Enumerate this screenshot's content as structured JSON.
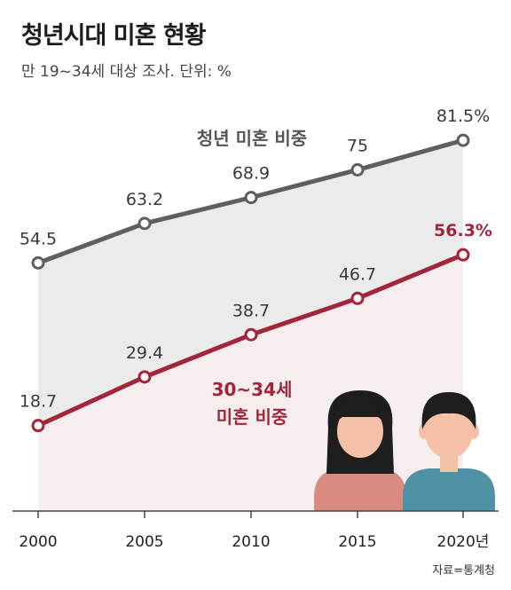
{
  "title": "청년시대 미혼 현황",
  "subtitle": "만 19~34세 대상 조사. 단위: %",
  "source": "자료=통계청",
  "colors": {
    "gray_line": "#5f5f5f",
    "red_line": "#a4253a",
    "gray_fill": "#ebebeb",
    "red_fill": "#f6eeee",
    "baseline": "#444444",
    "person_female_shirt": "#d98b80",
    "person_male_shirt": "#4e92a3",
    "skin": "#f5c0a8",
    "hair": "#1e1e1e"
  },
  "chart_data": {
    "type": "line",
    "x": [
      "2000",
      "2005",
      "2010",
      "2015",
      "2020년"
    ],
    "series": [
      {
        "name": "청년 미혼 비중",
        "values": [
          54.5,
          63.2,
          68.9,
          75,
          81.5
        ],
        "labels": [
          "54.5",
          "63.2",
          "68.9",
          "75",
          "81.5%"
        ],
        "color": "#5f5f5f"
      },
      {
        "name": "30~34세 미혼 비중",
        "name_lines": [
          "30~34세",
          "미혼 비중"
        ],
        "values": [
          18.7,
          29.4,
          38.7,
          46.7,
          56.3
        ],
        "labels": [
          "18.7",
          "29.4",
          "38.7",
          "46.7",
          "56.3%"
        ],
        "color": "#a4253a"
      }
    ],
    "ylim": [
      0,
      100
    ],
    "grid": false,
    "icons": [
      "female-person-icon",
      "male-person-icon"
    ]
  }
}
